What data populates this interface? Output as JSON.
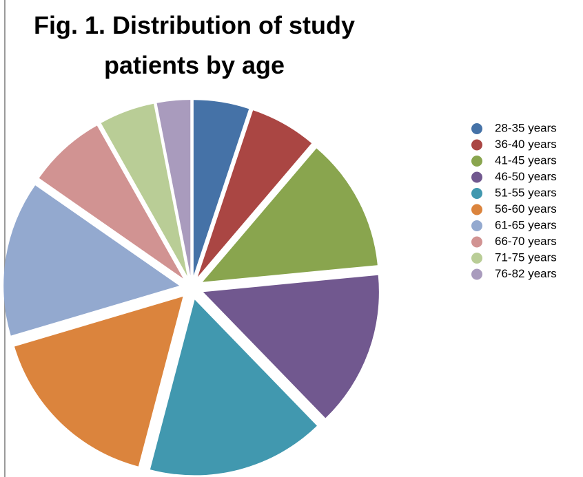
{
  "chart_data": {
    "type": "pie",
    "title": "Fig. 1. Distribution of study patients by age",
    "categories": [
      "28-35 years",
      "36-40 years",
      "41-45 years",
      "46-50 years",
      "51-55 years",
      "56-60 years",
      "61-65 years",
      "66-70 years",
      "71-75 years",
      "76-82 years"
    ],
    "values": [
      5,
      6,
      12,
      14,
      16,
      16,
      14,
      7,
      5,
      3
    ],
    "colors": [
      "#4572a7",
      "#aa4643",
      "#89a54e",
      "#71588f",
      "#4198af",
      "#db843d",
      "#93a9cf",
      "#d19392",
      "#b9cd96",
      "#a99bbd"
    ],
    "exploded": true,
    "legend": "right"
  }
}
